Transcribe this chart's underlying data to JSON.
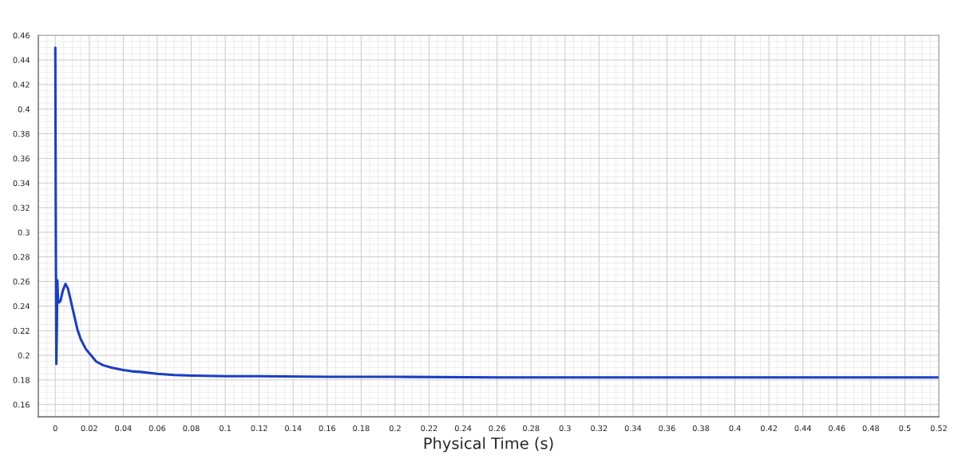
{
  "chart_data": {
    "type": "line",
    "xlabel": "Physical Time (s)",
    "xlim": [
      -0.01,
      0.52
    ],
    "xticks": [
      0,
      0.02,
      0.04,
      0.06,
      0.08,
      0.1,
      0.12,
      0.14,
      0.16,
      0.18,
      0.2,
      0.22,
      0.24,
      0.26,
      0.28,
      0.3,
      0.32,
      0.34,
      0.36,
      0.38,
      0.4,
      0.42,
      0.44,
      0.46,
      0.48,
      0.5,
      0.52
    ],
    "ylim": [
      0.15,
      0.46
    ],
    "yticks": [
      0.16,
      0.18,
      0.2,
      0.22,
      0.24,
      0.26,
      0.28,
      0.3,
      0.32,
      0.34,
      0.36,
      0.38,
      0.4,
      0.42,
      0.44,
      0.46
    ],
    "grid": true,
    "marker": "none",
    "line_style": "solid",
    "series": [
      {
        "color": "#1a3fc4",
        "x": [
          0,
          0.0003,
          0.0006,
          0.0009,
          0.0012,
          0.0016,
          0.0022,
          0.003,
          0.0045,
          0.006,
          0.0075,
          0.009,
          0.011,
          0.013,
          0.015,
          0.018,
          0.021,
          0.024,
          0.028,
          0.033,
          0.04,
          0.045,
          0.05,
          0.06,
          0.07,
          0.08,
          0.1,
          0.12,
          0.16,
          0.2,
          0.26,
          0.35,
          0.44,
          0.52
        ],
        "values": [
          0.45,
          0.3,
          0.193,
          0.22,
          0.261,
          0.245,
          0.243,
          0.244,
          0.253,
          0.258,
          0.254,
          0.245,
          0.233,
          0.221,
          0.213,
          0.205,
          0.2,
          0.195,
          0.192,
          0.19,
          0.188,
          0.187,
          0.1865,
          0.185,
          0.184,
          0.1835,
          0.183,
          0.183,
          0.1825,
          0.1825,
          0.182,
          0.182,
          0.182,
          0.182
        ]
      }
    ]
  }
}
